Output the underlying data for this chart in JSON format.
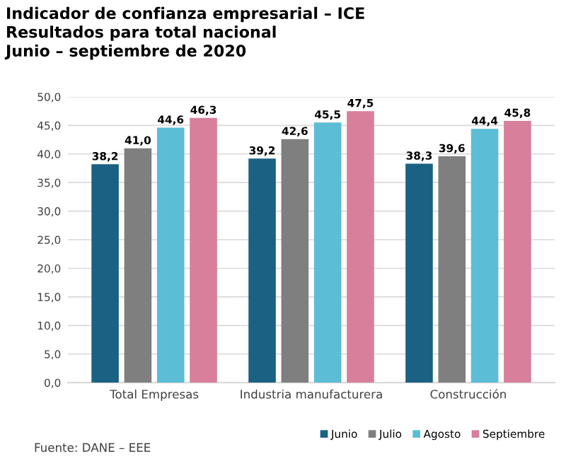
{
  "chart_data": {
    "type": "bar",
    "title": "Indicador de confianza empresarial – ICE\nResultados para total nacional\nJunio – septiembre de 2020",
    "categories": [
      "Total Empresas",
      "Industria manufacturera",
      "Construcción"
    ],
    "series": [
      {
        "name": "Junio",
        "color": "#1b6184",
        "values": [
          38.2,
          39.2,
          38.3
        ],
        "value_labels": [
          "38,2",
          "39,2",
          "38,3"
        ]
      },
      {
        "name": "Julio",
        "color": "#7f7f7f",
        "values": [
          41.0,
          42.6,
          39.6
        ],
        "value_labels": [
          "41,0",
          "42,6",
          "39,6"
        ]
      },
      {
        "name": "Agosto",
        "color": "#5bbdd6",
        "values": [
          44.6,
          45.5,
          44.4
        ],
        "value_labels": [
          "44,6",
          "45,5",
          "44,4"
        ]
      },
      {
        "name": "Septiembre",
        "color": "#d77f9b",
        "values": [
          46.3,
          47.5,
          45.8
        ],
        "value_labels": [
          "46,3",
          "47,5",
          "45,8"
        ]
      }
    ],
    "ylim": [
      0,
      50
    ],
    "yticks": [
      {
        "value": 0,
        "label": "0,0"
      },
      {
        "value": 5,
        "label": "5,0"
      },
      {
        "value": 10,
        "label": "10,0"
      },
      {
        "value": 15,
        "label": "15,0"
      },
      {
        "value": 20,
        "label": "20,0"
      },
      {
        "value": 25,
        "label": "25,0"
      },
      {
        "value": 30,
        "label": "30,0"
      },
      {
        "value": 35,
        "label": "35,0"
      },
      {
        "value": 40,
        "label": "40,0"
      },
      {
        "value": 45,
        "label": "45,0"
      },
      {
        "value": 50,
        "label": "50,0"
      }
    ],
    "grid": "y",
    "legend": "bottom right",
    "annotations": [
      "Fuente: DANE – EEE"
    ]
  }
}
